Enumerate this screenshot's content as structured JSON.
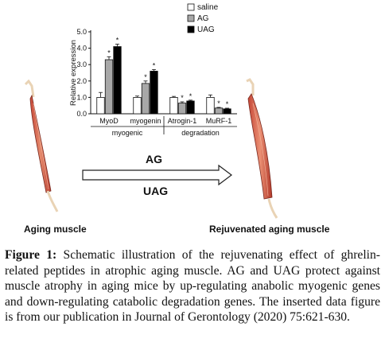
{
  "chart_data": {
    "type": "bar",
    "ylabel": "Relative expression",
    "ylim": [
      0,
      5
    ],
    "yticks": [
      "0.0",
      "1.0",
      "2.0",
      "3.0",
      "4.0",
      "5.0"
    ],
    "categories": [
      "MyoD",
      "myogenin",
      "Atrogin-1",
      "MuRF-1"
    ],
    "groups": [
      {
        "label": "myogenic",
        "categories": [
          "MyoD",
          "myogenin"
        ]
      },
      {
        "label": "degradation",
        "categories": [
          "Atrogin-1",
          "MuRF-1"
        ]
      }
    ],
    "series": [
      {
        "name": "saline",
        "color": "#ffffff",
        "values": [
          1.0,
          1.0,
          1.0,
          1.0
        ],
        "errors": [
          0.3,
          0.08,
          0.06,
          0.15
        ],
        "sig": [
          false,
          false,
          false,
          false
        ]
      },
      {
        "name": "AG",
        "color": "#a8a8a8",
        "values": [
          3.3,
          1.85,
          0.65,
          0.35
        ],
        "errors": [
          0.18,
          0.15,
          0.08,
          0.04
        ],
        "sig": [
          true,
          true,
          true,
          true
        ]
      },
      {
        "name": "UAG",
        "color": "#000000",
        "values": [
          4.1,
          2.6,
          0.78,
          0.3
        ],
        "errors": [
          0.15,
          0.1,
          0.05,
          0.04
        ],
        "sig": [
          true,
          true,
          true,
          true
        ]
      }
    ],
    "sig_marker": "*",
    "legend_position": "top-right"
  },
  "diagram": {
    "arrow_top_label": "AG",
    "arrow_bottom_label": "UAG",
    "left_label": "Aging muscle",
    "right_label": "Rejuvenated aging muscle"
  },
  "caption": {
    "label": "Figure 1:",
    "text": " Schematic illustration of the rejuvenating effect of ghrelin-related peptides in atrophic aging muscle. AG and UAG protect against muscle atrophy in aging mice by up-regulating anabolic myogenic genes and down-regulating catabolic degradation genes. The inserted data figure is from our publication in Journal of Gerontology (2020) 75:621-630."
  }
}
